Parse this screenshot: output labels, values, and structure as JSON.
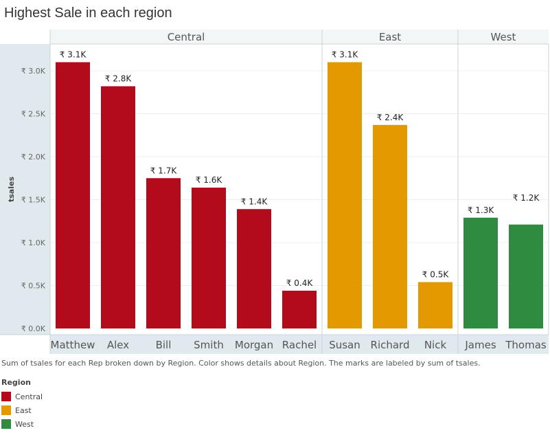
{
  "chart_data": {
    "type": "bar",
    "title": "Highest Sale in each region",
    "ylabel": "tsales",
    "xlabel": "",
    "ylim": [
      0,
      3300
    ],
    "yticks": [
      {
        "value": 0,
        "label": "₹ 0.0K"
      },
      {
        "value": 500,
        "label": "₹ 0.5K"
      },
      {
        "value": 1000,
        "label": "₹ 1.0K"
      },
      {
        "value": 1500,
        "label": "₹ 1.5K"
      },
      {
        "value": 2000,
        "label": "₹ 2.0K"
      },
      {
        "value": 2500,
        "label": "₹ 2.5K"
      },
      {
        "value": 3000,
        "label": "₹ 3.0K"
      }
    ],
    "regions": [
      {
        "name": "Central",
        "color": "#b30a1c",
        "reps": [
          {
            "name": "Matthew",
            "value": 3100,
            "label": "₹ 3.1K"
          },
          {
            "name": "Alex",
            "value": 2820,
            "label": "₹ 2.8K"
          },
          {
            "name": "Bill",
            "value": 1750,
            "label": "₹ 1.7K"
          },
          {
            "name": "Smith",
            "value": 1640,
            "label": "₹ 1.6K"
          },
          {
            "name": "Morgan",
            "value": 1390,
            "label": "₹ 1.4K"
          },
          {
            "name": "Rachel",
            "value": 440,
            "label": "₹ 0.4K"
          }
        ]
      },
      {
        "name": "East",
        "color": "#e39a00",
        "reps": [
          {
            "name": "Susan",
            "value": 3100,
            "label": "₹ 3.1K"
          },
          {
            "name": "Richard",
            "value": 2370,
            "label": "₹ 2.4K"
          },
          {
            "name": "Nick",
            "value": 540,
            "label": "₹ 0.5K"
          }
        ]
      },
      {
        "name": "West",
        "color": "#2e8b40",
        "reps": [
          {
            "name": "James",
            "value": 1290,
            "label": "₹ 1.3K"
          },
          {
            "name": "Thomas",
            "value": 1210,
            "label": "₹ 1.2K"
          }
        ]
      }
    ],
    "grid": true
  },
  "caption": "Sum of tsales for each Rep broken down by Region.  Color shows details about Region.  The marks are labeled by sum of tsales.",
  "legend": {
    "title": "Region",
    "items": [
      {
        "label": "Central",
        "color": "#b30a1c"
      },
      {
        "label": "East",
        "color": "#e39a00"
      },
      {
        "label": "West",
        "color": "#2e8b40"
      }
    ]
  }
}
